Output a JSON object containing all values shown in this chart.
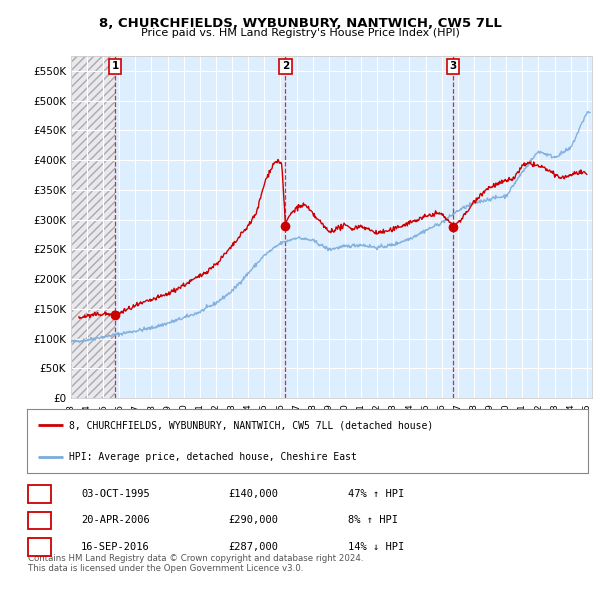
{
  "title_line1": "8, CHURCHFIELDS, WYBUNBURY, NANTWICH, CW5 7LL",
  "title_line2": "Price paid vs. HM Land Registry's House Price Index (HPI)",
  "ylim": [
    0,
    575000
  ],
  "yticks": [
    0,
    50000,
    100000,
    150000,
    200000,
    250000,
    300000,
    350000,
    400000,
    450000,
    500000,
    550000
  ],
  "ytick_labels": [
    "£0",
    "£50K",
    "£100K",
    "£150K",
    "£200K",
    "£250K",
    "£300K",
    "£350K",
    "£400K",
    "£450K",
    "£500K",
    "£550K"
  ],
  "xlim_start": 1993.0,
  "xlim_end": 2025.3,
  "sale_dates": [
    1995.75,
    2006.31,
    2016.71
  ],
  "sale_prices": [
    140000,
    290000,
    287000
  ],
  "sale_labels": [
    "1",
    "2",
    "3"
  ],
  "hpi_color": "#7aabdb",
  "sale_color": "#cc0000",
  "background_color": "#ffffff",
  "plot_bg_color": "#ddeeff",
  "grid_color": "#ffffff",
  "hatch_color": "#bbbbcc",
  "legend_house": "8, CHURCHFIELDS, WYBUNBURY, NANTWICH, CW5 7LL (detached house)",
  "legend_hpi": "HPI: Average price, detached house, Cheshire East",
  "table_data": [
    [
      "1",
      "03-OCT-1995",
      "£140,000",
      "47% ↑ HPI"
    ],
    [
      "2",
      "20-APR-2006",
      "£290,000",
      "8% ↑ HPI"
    ],
    [
      "3",
      "16-SEP-2016",
      "£287,000",
      "14% ↓ HPI"
    ]
  ],
  "footnote": "Contains HM Land Registry data © Crown copyright and database right 2024.\nThis data is licensed under the Open Government Licence v3.0.",
  "hpi_anchors_x": [
    1993,
    1994,
    1995,
    1996,
    1997,
    1998,
    1999,
    2000,
    2001,
    2002,
    2003,
    2004,
    2005,
    2006,
    2007,
    2008,
    2009,
    2010,
    2011,
    2012,
    2013,
    2014,
    2015,
    2016,
    2017,
    2018,
    2019,
    2020,
    2021,
    2022,
    2023,
    2024,
    2025
  ],
  "hpi_anchors_y": [
    95000,
    98000,
    103000,
    108000,
    113000,
    118000,
    126000,
    135000,
    145000,
    160000,
    180000,
    210000,
    240000,
    260000,
    270000,
    265000,
    250000,
    255000,
    258000,
    253000,
    258000,
    268000,
    282000,
    295000,
    315000,
    328000,
    335000,
    340000,
    380000,
    415000,
    405000,
    420000,
    480000
  ],
  "red_anchors_x": [
    1993.5,
    1994,
    1994.5,
    1995,
    1995.75,
    1996,
    1997,
    1998,
    1999,
    2000,
    2001,
    2002,
    2003,
    2004,
    2004.5,
    2005,
    2005.3,
    2005.6,
    2005.9,
    2006.1,
    2006.31,
    2006.5,
    2007,
    2007.5,
    2008,
    2008.5,
    2009,
    2009.5,
    2010,
    2010.5,
    2011,
    2011.5,
    2012,
    2012.5,
    2013,
    2013.5,
    2014,
    2014.5,
    2015,
    2015.5,
    2016,
    2016.5,
    2016.71,
    2017,
    2017.5,
    2018,
    2018.5,
    2019,
    2019.5,
    2020,
    2020.5,
    2021,
    2021.5,
    2022,
    2022.5,
    2023,
    2023.5,
    2024,
    2024.5,
    2025
  ],
  "red_anchors_y": [
    135000,
    138000,
    140000,
    142000,
    140000,
    143000,
    155000,
    165000,
    175000,
    190000,
    205000,
    225000,
    255000,
    290000,
    310000,
    360000,
    380000,
    395000,
    400000,
    390000,
    290000,
    305000,
    320000,
    325000,
    310000,
    295000,
    280000,
    285000,
    290000,
    285000,
    290000,
    283000,
    278000,
    280000,
    283000,
    290000,
    295000,
    300000,
    305000,
    310000,
    310000,
    295000,
    287000,
    295000,
    310000,
    330000,
    345000,
    355000,
    360000,
    365000,
    370000,
    390000,
    395000,
    390000,
    385000,
    375000,
    370000,
    375000,
    380000,
    375000
  ]
}
